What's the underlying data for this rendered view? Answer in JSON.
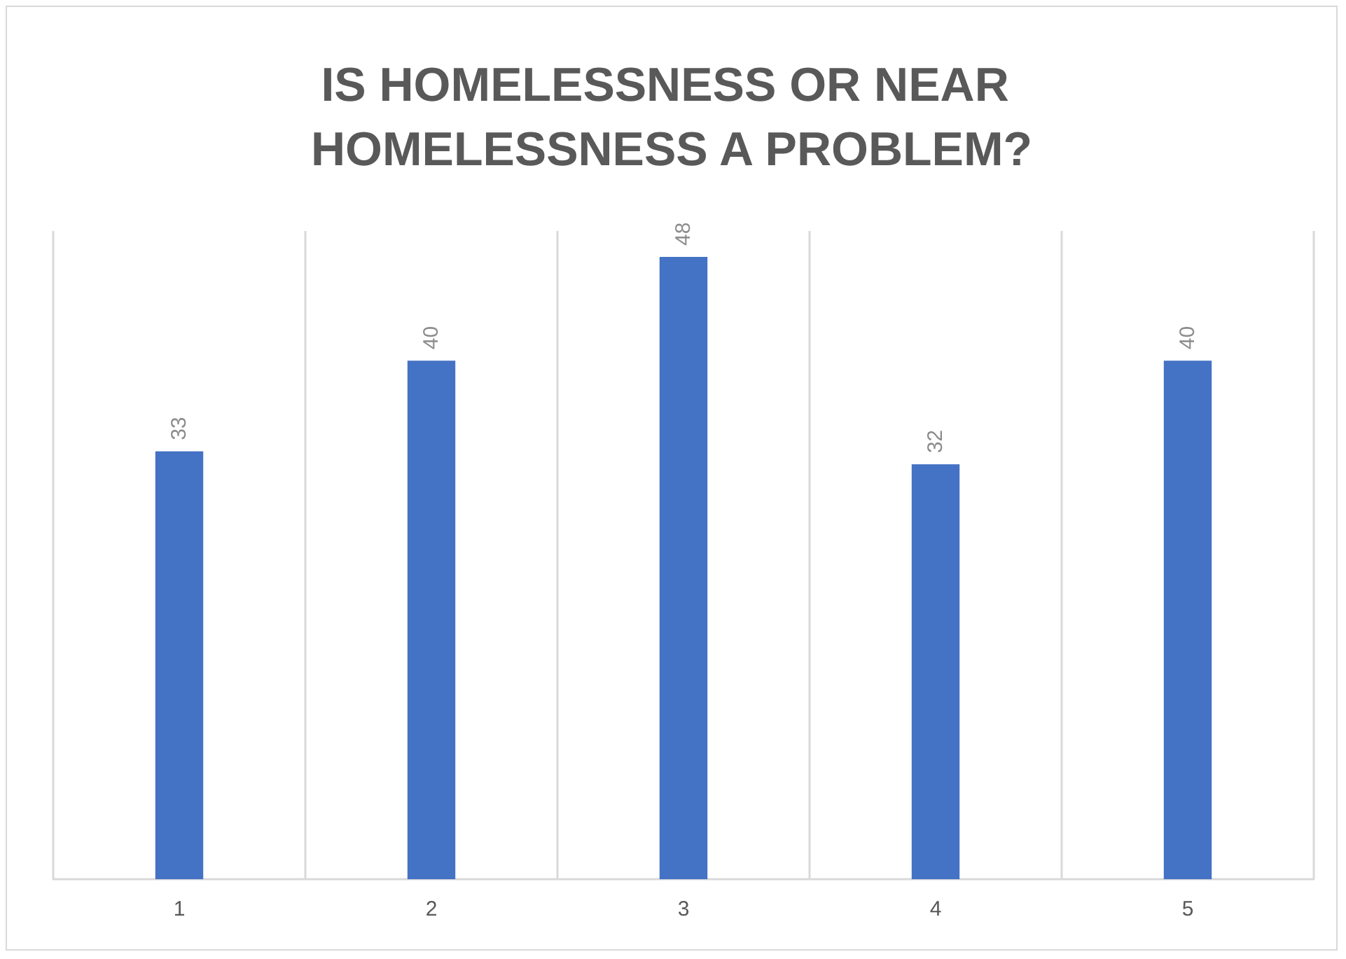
{
  "chart_data": {
    "type": "bar",
    "title": "IS HOMELESSNESS OR NEAR HOMELESSNESS A PROBLEM?",
    "categories": [
      "1",
      "2",
      "3",
      "4",
      "5"
    ],
    "values": [
      33,
      40,
      48,
      32,
      40
    ],
    "color": "#4472c4",
    "data_labels": true,
    "grid": "x",
    "tick_labels": "x"
  }
}
